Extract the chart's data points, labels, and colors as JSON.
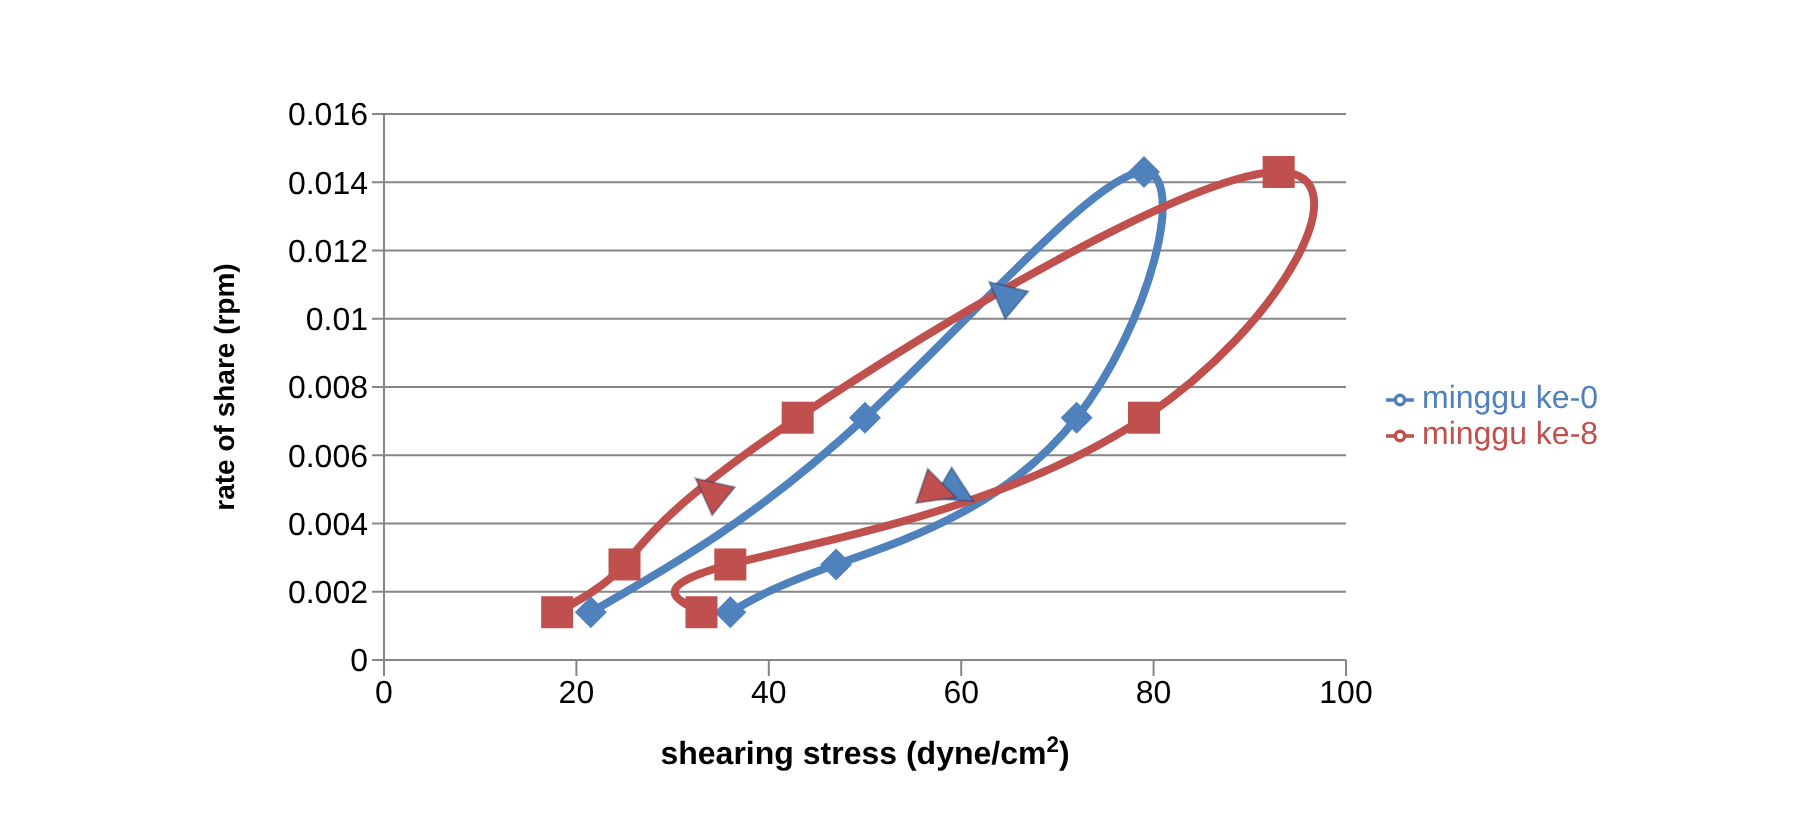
{
  "chart_data": {
    "type": "line",
    "xlabel": "shearing stress (dyne/cm$^{2}$)",
    "ylabel": "rate of share (rpm)",
    "xlim": [
      0,
      100
    ],
    "xticks": [
      0,
      20,
      40,
      60,
      80,
      100
    ],
    "ylim": [
      0,
      0.016
    ],
    "yticks": [
      0,
      0.002,
      0.004,
      0.006,
      0.008,
      0.01,
      0.012,
      0.014,
      0.016
    ],
    "grid": "y",
    "legend": "right",
    "series": [
      {
        "name": "minggu ke-0",
        "color": "#4f81bd",
        "marker": "diamond",
        "x": [
          36,
          47,
          72,
          79,
          50,
          21.5
        ],
        "values": [
          0.0014,
          0.0028,
          0.0071,
          0.0143,
          0.0071,
          0.0014
        ]
      },
      {
        "name": "minggu ke-8",
        "color": "#c0504d",
        "marker": "square",
        "x": [
          33,
          36,
          79,
          93,
          43,
          25,
          18
        ],
        "values": [
          0.0014,
          0.0028,
          0.0071,
          0.0143,
          0.0071,
          0.0028,
          0.0014
        ]
      }
    ]
  }
}
